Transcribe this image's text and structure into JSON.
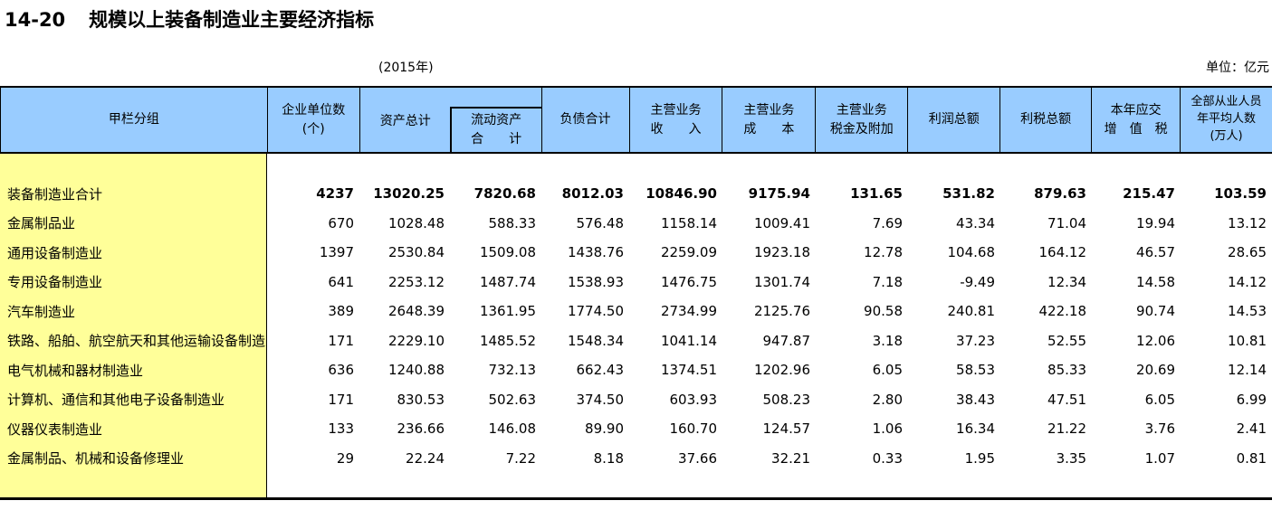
{
  "page": {
    "title_no": "14-20",
    "title": "规模以上装备制造业主要经济指标",
    "year_note": "(2015年)",
    "unit_note": "单位：亿元"
  },
  "colors": {
    "header_bg": "#99CCFF",
    "label_column_bg": "#FFFF99",
    "border": "#000000"
  },
  "table": {
    "headers": {
      "group_column": "甲栏分组",
      "enterprise_count": "企业单位数\n(个)",
      "total_assets": "资产总计",
      "current_assets": "流动资产\n合　　计",
      "total_liabilities": "负债合计",
      "revenue": "主营业务\n收　　入",
      "cost": "主营业务\n成　　本",
      "tax_surcharge": "主营业务\n税金及附加",
      "total_profit": "利润总额",
      "profit_tax": "利税总额",
      "vat": "本年应交\n增　值　税",
      "employees": "全部从业人员\n年平均人数\n(万人)"
    },
    "rows": [
      {
        "label": "装备制造业合计",
        "bold": true,
        "values": [
          "4237",
          "13020.25",
          "7820.68",
          "8012.03",
          "10846.90",
          "9175.94",
          "131.65",
          "531.82",
          "879.63",
          "215.47",
          "103.59"
        ]
      },
      {
        "label": "金属制品业",
        "bold": false,
        "values": [
          "670",
          "1028.48",
          "588.33",
          "576.48",
          "1158.14",
          "1009.41",
          "7.69",
          "43.34",
          "71.04",
          "19.94",
          "13.12"
        ]
      },
      {
        "label": "通用设备制造业",
        "bold": false,
        "values": [
          "1397",
          "2530.84",
          "1509.08",
          "1438.76",
          "2259.09",
          "1923.18",
          "12.78",
          "104.68",
          "164.12",
          "46.57",
          "28.65"
        ]
      },
      {
        "label": "专用设备制造业",
        "bold": false,
        "values": [
          "641",
          "2253.12",
          "1487.74",
          "1538.93",
          "1476.75",
          "1301.74",
          "7.18",
          "-9.49",
          "12.34",
          "14.58",
          "14.12"
        ]
      },
      {
        "label": "汽车制造业",
        "bold": false,
        "values": [
          "389",
          "2648.39",
          "1361.95",
          "1774.50",
          "2734.99",
          "2125.76",
          "90.58",
          "240.81",
          "422.18",
          "90.74",
          "14.53"
        ]
      },
      {
        "label": "铁路、船舶、航空航天和其他运输设备制造业",
        "bold": false,
        "values": [
          "171",
          "2229.10",
          "1485.52",
          "1548.34",
          "1041.14",
          "947.87",
          "3.18",
          "37.23",
          "52.55",
          "12.06",
          "10.81"
        ]
      },
      {
        "label": "电气机械和器材制造业",
        "bold": false,
        "values": [
          "636",
          "1240.88",
          "732.13",
          "662.43",
          "1374.51",
          "1202.96",
          "6.05",
          "58.53",
          "85.33",
          "20.69",
          "12.14"
        ]
      },
      {
        "label": "计算机、通信和其他电子设备制造业",
        "bold": false,
        "values": [
          "171",
          "830.53",
          "502.63",
          "374.50",
          "603.93",
          "508.23",
          "2.80",
          "38.43",
          "47.51",
          "6.05",
          "6.99"
        ]
      },
      {
        "label": "仪器仪表制造业",
        "bold": false,
        "values": [
          "133",
          "236.66",
          "146.08",
          "89.90",
          "160.70",
          "124.57",
          "1.06",
          "16.34",
          "21.22",
          "3.76",
          "2.41"
        ]
      },
      {
        "label": "金属制品、机械和设备修理业",
        "bold": false,
        "values": [
          "29",
          "22.24",
          "7.22",
          "8.18",
          "37.66",
          "32.21",
          "0.33",
          "1.95",
          "3.35",
          "1.07",
          "0.81"
        ]
      }
    ]
  }
}
